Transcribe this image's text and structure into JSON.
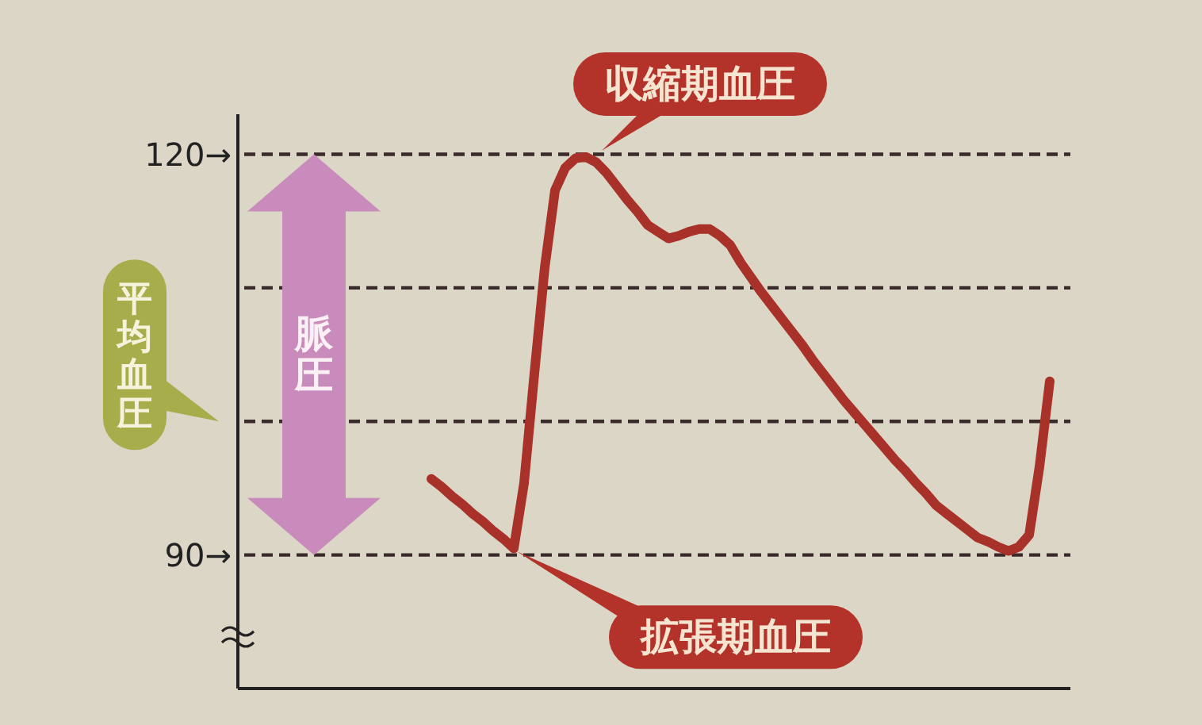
{
  "chart_data": {
    "type": "line",
    "categories": [
      null,
      null,
      null,
      null,
      null,
      null,
      null,
      null,
      null,
      null,
      null,
      null,
      null,
      null,
      null,
      null,
      null,
      null,
      null,
      null,
      null,
      null,
      null,
      null,
      null,
      null,
      null,
      null,
      null,
      null,
      null,
      null,
      null,
      null,
      null,
      null,
      null,
      null,
      null,
      null,
      null,
      null,
      null,
      null,
      null,
      null,
      null,
      null,
      null,
      null,
      null,
      null,
      null,
      null,
      null,
      null,
      null,
      null,
      null,
      null,
      null
    ],
    "series": [
      {
        "color": "#a8322a",
        "values": [
          95.7,
          95.1,
          94.4,
          93.8,
          93.1,
          92.5,
          91.8,
          91.2,
          90.5,
          95.4,
          103.6,
          111.5,
          117.3,
          119.0,
          119.7,
          119.8,
          119.4,
          118.6,
          117.6,
          116.6,
          115.7,
          114.7,
          114.2,
          113.7,
          113.9,
          114.2,
          114.4,
          114.4,
          113.9,
          113.2,
          111.9,
          110.8,
          109.7,
          108.7,
          107.7,
          106.7,
          105.7,
          104.6,
          103.6,
          102.6,
          101.6,
          100.7,
          99.8,
          98.9,
          98.0,
          97.1,
          96.3,
          95.4,
          94.6,
          93.7,
          93.1,
          92.5,
          91.9,
          91.3,
          91.0,
          90.6,
          90.3,
          90.6,
          91.5,
          96.6,
          103.0
        ]
      }
    ],
    "ylim": [
      80,
      123
    ],
    "yticks": [
      {
        "value": 90,
        "label": "90→"
      },
      {
        "value": 120,
        "label": "120→"
      }
    ],
    "tick_labels": "y",
    "line_style": "solid",
    "ref_lines": [
      {
        "axis": "y",
        "value": 120,
        "color": "#3a2a2a",
        "line_style": "dashed"
      },
      {
        "axis": "y",
        "value": 110,
        "color": "#3a2a2a",
        "line_style": "dashed"
      },
      {
        "axis": "y",
        "value": 100,
        "label": "平均血圧",
        "color": "#3a2a2a",
        "line_style": "dashed"
      },
      {
        "axis": "y",
        "value": 90,
        "color": "#3a2a2a",
        "line_style": "dashed"
      }
    ],
    "annotations": [
      "脈圧",
      {
        "text": "収縮期血圧",
        "y": 120
      },
      {
        "text": "拡張期血圧",
        "y": 90
      }
    ]
  }
}
